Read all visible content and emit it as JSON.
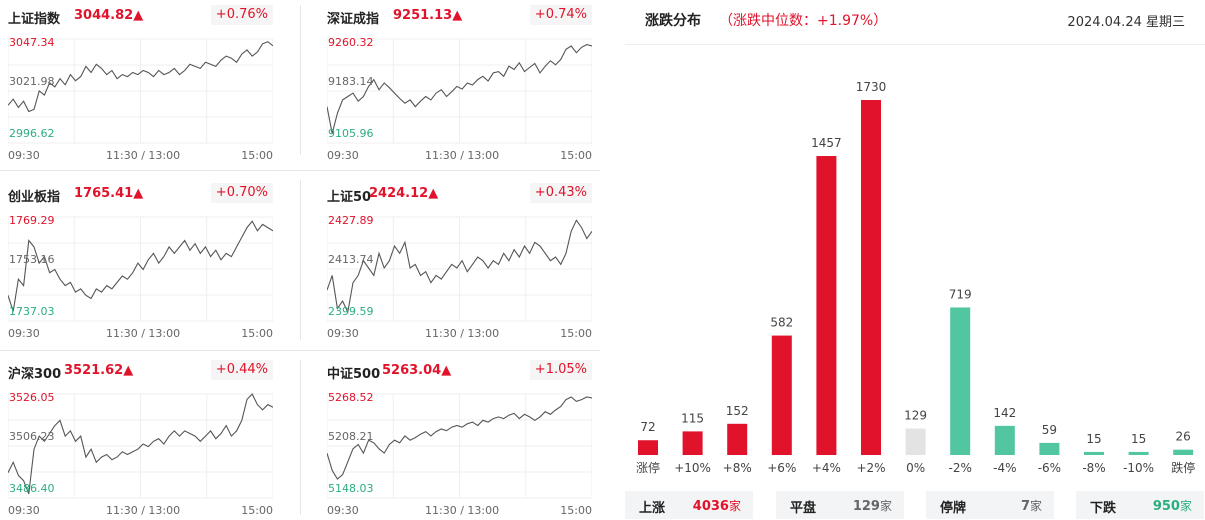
{
  "indices": [
    {
      "name": "上证指数",
      "value": "3044.82▲",
      "pct": "+0.76%",
      "high": "3047.34",
      "mid": "3021.98",
      "low": "2996.62",
      "times": [
        "09:30",
        "11:30 / 13:00",
        "15:00"
      ],
      "series": [
        3015,
        3018,
        3014,
        3017,
        3012,
        3013,
        3022,
        3020,
        3026,
        3024,
        3028,
        3025,
        3030,
        3027,
        3029,
        3034,
        3031,
        3035,
        3033,
        3030,
        3032,
        3028,
        3030,
        3029,
        3031,
        3030,
        3032,
        3031,
        3029,
        3032,
        3030,
        3031,
        3033,
        3030,
        3032,
        3035,
        3034,
        3033,
        3036,
        3035,
        3034,
        3037,
        3039,
        3038,
        3036,
        3040,
        3042,
        3039,
        3041,
        3045,
        3046,
        3044
      ]
    },
    {
      "name": "深证成指",
      "value": "9251.13▲",
      "pct": "+0.74%",
      "high": "9260.32",
      "mid": "9183.14",
      "low": "9105.96",
      "times": [
        "09:30",
        "11:30 / 13:00",
        "15:00"
      ],
      "series": [
        9160,
        9120,
        9150,
        9170,
        9175,
        9180,
        9168,
        9175,
        9190,
        9200,
        9185,
        9195,
        9188,
        9180,
        9172,
        9165,
        9170,
        9160,
        9168,
        9175,
        9170,
        9180,
        9185,
        9175,
        9182,
        9190,
        9186,
        9195,
        9192,
        9200,
        9205,
        9198,
        9210,
        9212,
        9205,
        9220,
        9215,
        9225,
        9212,
        9218,
        9224,
        9210,
        9220,
        9228,
        9222,
        9230,
        9245,
        9250,
        9240,
        9248,
        9252,
        9250
      ]
    },
    {
      "name": "创业板指",
      "value": "1765.41▲",
      "pct": "+0.70%",
      "high": "1769.29",
      "mid": "1753.16",
      "low": "1737.03",
      "times": [
        "09:30",
        "11:30 / 13:00",
        "15:00"
      ],
      "series": [
        1745,
        1740,
        1750,
        1748,
        1762,
        1760,
        1755,
        1757,
        1752,
        1753,
        1750,
        1748,
        1749,
        1746,
        1747,
        1745,
        1744,
        1747,
        1746,
        1748,
        1747,
        1749,
        1751,
        1750,
        1752,
        1755,
        1753,
        1756,
        1758,
        1755,
        1757,
        1760,
        1758,
        1760,
        1762,
        1759,
        1761,
        1758,
        1760,
        1757,
        1759,
        1756,
        1758,
        1757,
        1760,
        1763,
        1766,
        1768,
        1765,
        1767,
        1766,
        1765
      ]
    },
    {
      "name": "上证50",
      "value": "2424.12▲",
      "pct": "+0.43%",
      "high": "2427.89",
      "mid": "2413.74",
      "low": "2399.59",
      "times": [
        "09:30",
        "11:30 / 13:00",
        "15:00"
      ],
      "series": [
        2408,
        2412,
        2403,
        2405,
        2402,
        2410,
        2412,
        2416,
        2414,
        2412,
        2418,
        2414,
        2416,
        2420,
        2418,
        2421,
        2414,
        2415,
        2412,
        2413,
        2410,
        2412,
        2411,
        2413,
        2415,
        2414,
        2416,
        2413,
        2415,
        2417,
        2416,
        2414,
        2416,
        2415,
        2418,
        2416,
        2419,
        2417,
        2420,
        2418,
        2421,
        2420,
        2418,
        2416,
        2417,
        2415,
        2418,
        2424,
        2427,
        2425,
        2422,
        2424
      ]
    },
    {
      "name": "沪深300",
      "value": "3521.62▲",
      "pct": "+0.44%",
      "high": "3526.05",
      "mid": "3506.23",
      "low": "3486.40",
      "times": [
        "09:30",
        "11:30 / 13:00",
        "15:00"
      ],
      "series": [
        3496,
        3500,
        3495,
        3493,
        3488,
        3505,
        3510,
        3508,
        3511,
        3514,
        3516,
        3510,
        3512,
        3508,
        3510,
        3502,
        3505,
        3500,
        3502,
        3503,
        3501,
        3502,
        3504,
        3503,
        3504,
        3505,
        3507,
        3506,
        3508,
        3509,
        3507,
        3510,
        3512,
        3510,
        3512,
        3511,
        3510,
        3508,
        3510,
        3512,
        3509,
        3511,
        3514,
        3510,
        3512,
        3516,
        3524,
        3526,
        3522,
        3520,
        3522,
        3521
      ]
    },
    {
      "name": "中证500",
      "value": "5263.04▲",
      "pct": "+1.05%",
      "high": "5268.52",
      "mid": "5208.21",
      "low": "5148.03",
      "times": [
        "09:30",
        "11:30 / 13:00",
        "15:00"
      ],
      "series": [
        5200,
        5180,
        5170,
        5175,
        5190,
        5205,
        5210,
        5200,
        5215,
        5212,
        5205,
        5200,
        5210,
        5215,
        5212,
        5220,
        5215,
        5218,
        5222,
        5225,
        5220,
        5225,
        5228,
        5226,
        5230,
        5232,
        5230,
        5234,
        5236,
        5232,
        5238,
        5236,
        5240,
        5242,
        5240,
        5244,
        5246,
        5240,
        5245,
        5242,
        5238,
        5242,
        5248,
        5245,
        5250,
        5254,
        5262,
        5265,
        5260,
        5262,
        5265,
        5264
      ]
    }
  ],
  "distribution": {
    "title": "涨跌分布",
    "subtitle": "（涨跌中位数：+1.97%）",
    "date": "2024.04.24 星期三",
    "colors": {
      "up": "#e0132b",
      "flat": "#e3e3e3",
      "down": "#52c5a1"
    },
    "chart_data": {
      "type": "bar",
      "categories": [
        "涨停",
        "+10%",
        "+8%",
        "+6%",
        "+4%",
        "+2%",
        "0%",
        "-2%",
        "-4%",
        "-6%",
        "-8%",
        "-10%",
        "跌停"
      ],
      "values": [
        72,
        115,
        152,
        582,
        1457,
        1730,
        129,
        719,
        142,
        59,
        15,
        15,
        26
      ],
      "kinds": [
        "up",
        "up",
        "up",
        "up",
        "up",
        "up",
        "flat",
        "down",
        "down",
        "down",
        "down",
        "down",
        "down"
      ]
    },
    "summary": [
      {
        "label": "上涨",
        "value": "4036",
        "unit": "家",
        "color": "#e0132b"
      },
      {
        "label": "平盘",
        "value": "129",
        "unit": "家",
        "color": "#666666"
      },
      {
        "label": "停牌",
        "value": "7",
        "unit": "家",
        "color": "#666666"
      },
      {
        "label": "下跌",
        "value": "950",
        "unit": "家",
        "color": "#2bae7e"
      }
    ]
  }
}
